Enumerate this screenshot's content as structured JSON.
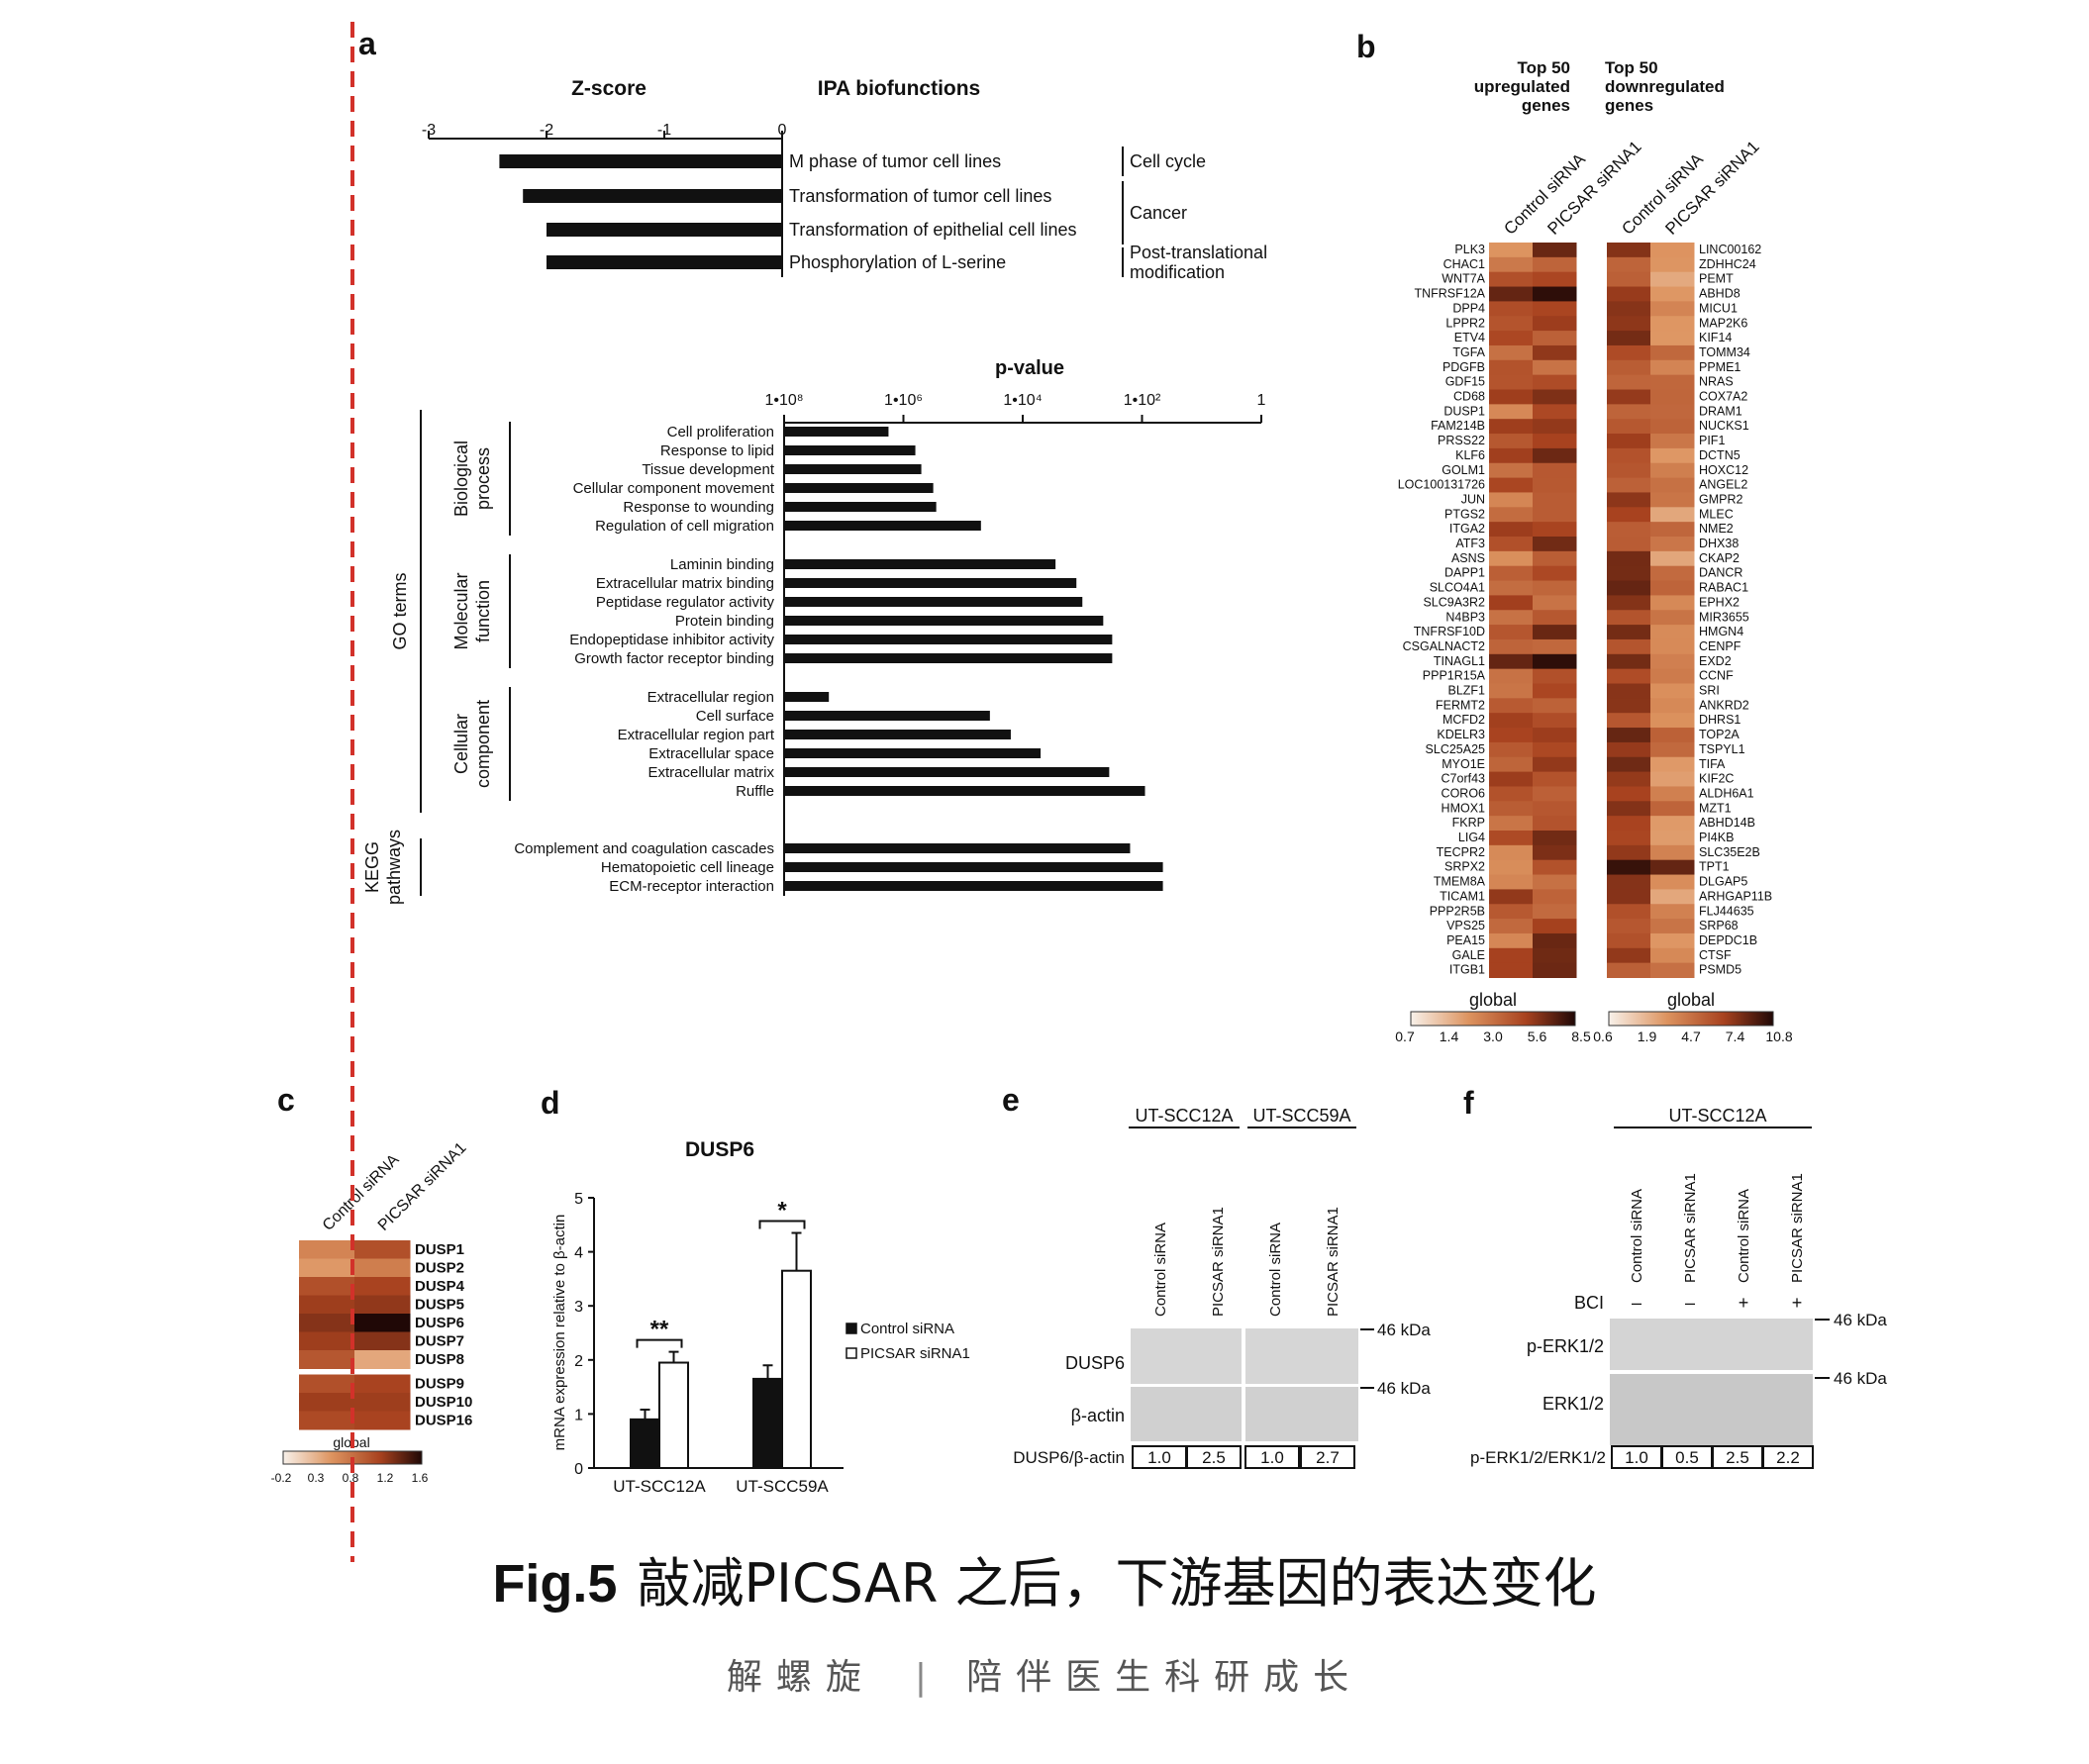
{
  "panel_letters": [
    "a",
    "b",
    "c",
    "d",
    "e",
    "f"
  ],
  "caption": {
    "prefix": "Fig.5",
    "text": "敲减PICSAR 之后，下游基因的表达变化"
  },
  "footer": {
    "left": "解螺旋",
    "separator": "|",
    "right": "陪伴医生科研成长"
  },
  "colors": {
    "heat_low": "#f6ede4",
    "heat_mid": "#c96a35",
    "heat_high": "#2a0e08",
    "guide_line": "#d2312a"
  },
  "chart_data": [
    {
      "id": "a1",
      "type": "bar",
      "orientation": "horizontal",
      "xlabel": "Z-score",
      "category_header": "IPA biofunctions",
      "xlim": [
        -3,
        0
      ],
      "xticks": [
        "-3",
        "-2",
        "-1",
        "0"
      ],
      "categories": [
        "M phase of tumor cell lines",
        "Transformation of tumor cell lines",
        "Transformation of epithelial cell lines",
        "Phosphorylation of L-serine"
      ],
      "values": [
        -2.4,
        -2.2,
        -2.0,
        -2.0
      ],
      "groups": [
        {
          "label": [
            "Cell cycle"
          ],
          "start": 0,
          "end": 0
        },
        {
          "label": [
            "Cancer"
          ],
          "start": 1,
          "end": 2
        },
        {
          "label": [
            "Post-translational",
            "modification"
          ],
          "start": 3,
          "end": 3
        }
      ]
    },
    {
      "id": "a2",
      "type": "bar",
      "orientation": "horizontal",
      "xlabel": "p-value",
      "scale": "log",
      "xticks": [
        "1•10⁸",
        "1•10⁶",
        "1•10⁴",
        "1•10²",
        "1"
      ],
      "xlim_exponent": [
        -8,
        0
      ],
      "categories": [
        "Cell proliferation",
        "Response to lipid",
        "Tissue development",
        "Cellular component movement",
        "Response to wounding",
        "Regulation of cell migration",
        "Laminin binding",
        "Extracellular matrix binding",
        "Peptidase regulator activity",
        "Protein binding",
        "Endopeptidase inhibitor activity",
        "Growth factor receptor binding",
        "Extracellular region",
        "Cell surface",
        "Extracellular region part",
        "Extracellular space",
        "Extracellular matrix",
        "Ruffle",
        "Complement and coagulation cascades",
        "Hematopoietic cell lineage",
        "ECM-receptor interaction"
      ],
      "values_exponent": [
        -6.25,
        -5.8,
        -5.7,
        -5.5,
        -5.45,
        -4.7,
        -3.45,
        -3.1,
        -3.0,
        -2.65,
        -2.5,
        -2.5,
        -7.25,
        -4.55,
        -4.2,
        -3.7,
        -2.55,
        -1.95,
        -2.2,
        -1.65,
        -1.65
      ],
      "groups": [
        {
          "label": [
            "Biological",
            "process"
          ],
          "start": 0,
          "end": 5
        },
        {
          "label": [
            "Molecular",
            "function"
          ],
          "start": 6,
          "end": 11
        },
        {
          "label": [
            "Cellular",
            "component"
          ],
          "start": 12,
          "end": 17
        },
        {
          "label": [
            "KEGG",
            "pathways"
          ],
          "start": 18,
          "end": 20
        }
      ],
      "supergroup": {
        "label": "GO terms",
        "start": 0,
        "end": 17
      }
    },
    {
      "id": "b",
      "type": "heatmap",
      "headers": [
        {
          "lines": [
            "Top 50",
            "upregulated",
            "genes"
          ]
        },
        {
          "lines": [
            "Top 50",
            "downregulated",
            "genes"
          ]
        }
      ],
      "columns": [
        "Control siRNA",
        "PICSAR siRNA1",
        "Control siRNA",
        "PICSAR siRNA1"
      ],
      "up_genes": [
        "PLK3",
        "CHAC1",
        "WNT7A",
        "TNFRSF12A",
        "DPP4",
        "LPPR2",
        "ETV4",
        "TGFA",
        "PDGFB",
        "GDF15",
        "CD68",
        "DUSP1",
        "FAM214B",
        "PRSS22",
        "KLF6",
        "GOLM1",
        "LOC100131726",
        "JUN",
        "PTGS2",
        "ITGA2",
        "ATF3",
        "ASNS",
        "DAPP1",
        "SLCO4A1",
        "SLC9A3R2",
        "N4BP3",
        "TNFRSF10D",
        "CSGALNACT2",
        "TINAGL1",
        "PPP1R15A",
        "BLZF1",
        "FERMT2",
        "MCFD2",
        "KDELR3",
        "SLC25A25",
        "MYO1E",
        "C7orf43",
        "CORO6",
        "HMOX1",
        "FKRP",
        "LIG4",
        "TECPR2",
        "SRPX2",
        "TMEM8A",
        "TICAM1",
        "PPP2R5B",
        "VPS25",
        "PEA15",
        "GALE",
        "ITGB1"
      ],
      "down_genes": [
        "LINC00162",
        "ZDHHC24",
        "PEMT",
        "ABHD8",
        "MICU1",
        "MAP2K6",
        "KIF14",
        "TOMM34",
        "PPME1",
        "NRAS",
        "COX7A2",
        "DRAM1",
        "NUCKS1",
        "PIF1",
        "DCTN5",
        "HOXC12",
        "ANGEL2",
        "GMPR2",
        "MLEC",
        "NME2",
        "DHX38",
        "CKAP2",
        "DANCR",
        "RABAC1",
        "EPHX2",
        "MIR3655",
        "HMGN4",
        "CENPF",
        "EXD2",
        "CCNF",
        "SRI",
        "ANKRD2",
        "DHRS1",
        "TOP2A",
        "TSPYL1",
        "TIFA",
        "KIF2C",
        "ALDH6A1",
        "MZT1",
        "ABHD14B",
        "PI4KB",
        "SLC35E2B",
        "TPT1",
        "DLGAP5",
        "ARHGAP11B",
        "FLJ44635",
        "SRP68",
        "DEPDC1B",
        "CTSF",
        "PSMD5"
      ],
      "legend_left": {
        "title": "global",
        "ticks": [
          "0.7",
          "1.4",
          "3.0",
          "5.6",
          "8.5"
        ]
      },
      "legend_right": {
        "title": "global",
        "ticks": [
          "0.6",
          "1.9",
          "4.7",
          "7.4",
          "10.8"
        ]
      }
    },
    {
      "id": "c",
      "type": "heatmap",
      "columns": [
        "Control siRNA",
        "PICSAR siRNA1"
      ],
      "rows": [
        "DUSP1",
        "DUSP2",
        "DUSP4",
        "DUSP5",
        "DUSP6",
        "DUSP7",
        "DUSP8",
        "DUSP9",
        "DUSP10",
        "DUSP16"
      ],
      "values": [
        [
          0.55,
          0.95
        ],
        [
          0.4,
          0.6
        ],
        [
          0.95,
          1.05
        ],
        [
          1.1,
          1.15
        ],
        [
          1.2,
          1.6
        ],
        [
          1.1,
          1.2
        ],
        [
          0.9,
          0.3
        ],
        [
          0.95,
          1.05
        ],
        [
          1.1,
          1.1
        ],
        [
          1.0,
          1.05
        ]
      ],
      "legend": {
        "title": "global",
        "ticks": [
          "-0.2",
          "0.3",
          "0.8",
          "1.2",
          "1.6"
        ],
        "range": [
          -0.2,
          1.6
        ]
      }
    },
    {
      "id": "d",
      "type": "bar",
      "title": "DUSP6",
      "ylabel": "mRNA expression relative to β-actin",
      "ylim": [
        0,
        5
      ],
      "yticks": [
        "0",
        "1",
        "2",
        "3",
        "4",
        "5"
      ],
      "categories": [
        "UT-SCC12A",
        "UT-SCC59A"
      ],
      "series": [
        {
          "name": "Control siRNA",
          "values": [
            0.9,
            1.65
          ],
          "errors": [
            0.18,
            0.25
          ]
        },
        {
          "name": "PICSAR siRNA1",
          "values": [
            1.95,
            3.65
          ],
          "errors": [
            0.2,
            0.7
          ]
        }
      ],
      "significance": [
        "**",
        "*"
      ]
    },
    {
      "id": "e",
      "type": "table",
      "title": "western blot",
      "cell_lines": [
        "UT-SCC12A",
        "UT-SCC59A"
      ],
      "lanes": [
        "Control siRNA",
        "PICSAR siRNA1",
        "Control siRNA",
        "PICSAR siRNA1"
      ],
      "rows": [
        "DUSP6",
        "β-actin"
      ],
      "marker": "46 kDa",
      "ratio_label": "DUSP6/β-actin",
      "ratios": [
        "1.0",
        "2.5",
        "1.0",
        "2.7"
      ]
    },
    {
      "id": "f",
      "type": "table",
      "title": "western blot",
      "cell_line": "UT-SCC12A",
      "lanes": [
        "Control siRNA",
        "PICSAR siRNA1",
        "Control siRNA",
        "PICSAR siRNA1"
      ],
      "treatment_label": "BCI",
      "treatment": [
        "–",
        "–",
        "+",
        "+"
      ],
      "rows": [
        "p-ERK1/2",
        "ERK1/2"
      ],
      "marker": "46 kDa",
      "ratio_label": "p-ERK1/2/ERK1/2",
      "ratios": [
        "1.0",
        "0.5",
        "2.5",
        "2.2"
      ]
    }
  ]
}
